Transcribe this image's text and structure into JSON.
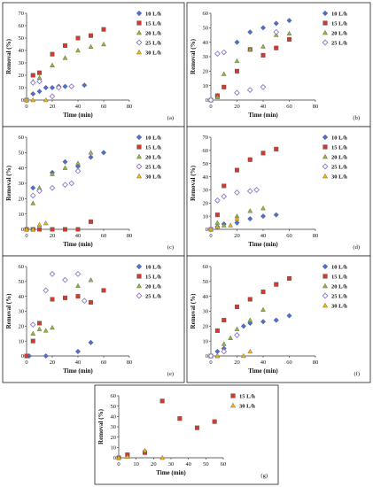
{
  "figure": {
    "colors": {
      "10 L/h": "#4a6fd6",
      "15 L/h": "#d23a2e",
      "20 L/h": "#8fb83a",
      "25 L/h": "#8e7cc3",
      "30 L/h": "#f2b705"
    },
    "markers": {
      "10 L/h": "diamond",
      "15 L/h": "square",
      "20 L/h": "triangle",
      "25 L/h": "diamond-open",
      "30 L/h": "triangle"
    }
  },
  "chart_data": [
    {
      "type": "scatter",
      "panel_label": "(a)",
      "xlabel": "Time (min)",
      "ylabel": "Removal (%)",
      "xlim": [
        0,
        80
      ],
      "ylim": [
        0,
        70
      ],
      "xticks": [
        0,
        20,
        40,
        60,
        80
      ],
      "yticks": [
        0,
        10,
        20,
        30,
        40,
        50,
        60,
        70
      ],
      "legend_position": "right",
      "series": [
        {
          "name": "10 L/h",
          "x": [
            0,
            5,
            10,
            15,
            20,
            25,
            30,
            45
          ],
          "y": [
            0,
            5,
            7,
            10,
            10,
            11,
            11,
            12
          ]
        },
        {
          "name": "15 L/h",
          "x": [
            0,
            5,
            10,
            20,
            30,
            40,
            50,
            60
          ],
          "y": [
            0,
            20,
            22,
            37,
            44,
            50,
            52,
            57
          ]
        },
        {
          "name": "20 L/h",
          "x": [
            0,
            5,
            10,
            20,
            30,
            40,
            50,
            60
          ],
          "y": [
            0,
            15,
            18,
            28,
            34,
            40,
            43,
            45
          ]
        },
        {
          "name": "25 L/h",
          "x": [
            0,
            5,
            10,
            20,
            25,
            35
          ],
          "y": [
            0,
            14,
            15,
            3,
            10,
            11
          ]
        },
        {
          "name": "30 L/h",
          "x": [
            0,
            5,
            15
          ],
          "y": [
            0,
            0,
            0
          ]
        }
      ]
    },
    {
      "type": "scatter",
      "panel_label": "(b)",
      "xlabel": "Time (min)",
      "ylabel": "Removal (%)",
      "xlim": [
        0,
        80
      ],
      "ylim": [
        0,
        60
      ],
      "xticks": [
        0,
        20,
        40,
        60,
        80
      ],
      "yticks": [
        0,
        10,
        20,
        30,
        40,
        50,
        60
      ],
      "legend_position": "right",
      "series": [
        {
          "name": "10 L/h",
          "x": [
            0,
            5,
            10,
            20,
            30,
            40,
            50,
            60
          ],
          "y": [
            0,
            3,
            33,
            40,
            47,
            50,
            53,
            55
          ]
        },
        {
          "name": "15 L/h",
          "x": [
            0,
            5,
            10,
            20,
            30,
            40,
            50,
            60
          ],
          "y": [
            0,
            3,
            9,
            20,
            35,
            31,
            36,
            42
          ]
        },
        {
          "name": "20 L/h",
          "x": [
            0,
            5,
            10,
            20,
            30,
            40,
            50,
            60
          ],
          "y": [
            0,
            2,
            18,
            27,
            35,
            37,
            45,
            46
          ]
        },
        {
          "name": "25 L/h",
          "x": [
            0,
            5,
            10,
            20,
            30,
            40,
            50
          ],
          "y": [
            0,
            32,
            33,
            5,
            7,
            9,
            47
          ]
        }
      ]
    },
    {
      "type": "scatter",
      "panel_label": "(c)",
      "xlabel": "Time (min)",
      "ylabel": "Removal (%)",
      "xlim": [
        0,
        80
      ],
      "ylim": [
        0,
        60
      ],
      "xticks": [
        0,
        20,
        40,
        60,
        80
      ],
      "yticks": [
        0,
        10,
        20,
        30,
        40,
        50,
        60
      ],
      "legend_position": "right",
      "series": [
        {
          "name": "10 L/h",
          "x": [
            5,
            10,
            20,
            30,
            40,
            50,
            60
          ],
          "y": [
            27,
            25,
            37,
            44,
            41,
            47,
            50
          ]
        },
        {
          "name": "15 L/h",
          "x": [
            0,
            5,
            10,
            20,
            30,
            40,
            50
          ],
          "y": [
            0,
            0,
            0,
            0,
            0,
            0,
            5
          ]
        },
        {
          "name": "20 L/h",
          "x": [
            5,
            10,
            20,
            30,
            40,
            50
          ],
          "y": [
            17,
            27,
            36,
            40,
            43,
            50
          ]
        },
        {
          "name": "25 L/h",
          "x": [
            5,
            10,
            20,
            30,
            35,
            40
          ],
          "y": [
            22,
            25,
            27,
            29,
            30,
            38
          ]
        },
        {
          "name": "30 L/h",
          "x": [
            0,
            5,
            10,
            15
          ],
          "y": [
            0,
            0,
            3,
            4
          ]
        }
      ]
    },
    {
      "type": "scatter",
      "panel_label": "(d)",
      "xlabel": "Time (min)",
      "ylabel": "Removal (%)",
      "xlim": [
        0,
        80
      ],
      "ylim": [
        0,
        70
      ],
      "xticks": [
        0,
        20,
        40,
        60,
        80
      ],
      "yticks": [
        0,
        10,
        20,
        30,
        40,
        50,
        60,
        70
      ],
      "legend_position": "right",
      "series": [
        {
          "name": "10 L/h",
          "x": [
            0,
            5,
            10,
            20,
            30,
            40,
            50
          ],
          "y": [
            0,
            2,
            4,
            5,
            8,
            10,
            11
          ]
        },
        {
          "name": "15 L/h",
          "x": [
            0,
            5,
            10,
            20,
            30,
            40,
            50
          ],
          "y": [
            0,
            11,
            33,
            45,
            53,
            58,
            61
          ]
        },
        {
          "name": "20 L/h",
          "x": [
            0,
            5,
            10,
            20,
            30,
            40
          ],
          "y": [
            0,
            5,
            3,
            10,
            14,
            16
          ]
        },
        {
          "name": "25 L/h",
          "x": [
            0,
            5,
            10,
            20,
            30,
            35
          ],
          "y": [
            0,
            22,
            25,
            28,
            29,
            30
          ]
        },
        {
          "name": "30 L/h",
          "x": [
            0,
            5,
            15,
            20
          ],
          "y": [
            0,
            2,
            3,
            8
          ]
        }
      ]
    },
    {
      "type": "scatter",
      "panel_label": "(e)",
      "xlabel": "Time (min)",
      "ylabel": "Removal (%)",
      "xlim": [
        0,
        80
      ],
      "ylim": [
        0,
        60
      ],
      "xticks": [
        0,
        20,
        40,
        60,
        80
      ],
      "yticks": [
        0,
        10,
        20,
        30,
        40,
        50,
        60
      ],
      "legend_position": "right",
      "series": [
        {
          "name": "10 L/h",
          "x": [
            0,
            2,
            15,
            40,
            50
          ],
          "y": [
            0,
            0,
            0,
            3,
            9
          ]
        },
        {
          "name": "15 L/h",
          "x": [
            0,
            5,
            10,
            20,
            30,
            40,
            50,
            60
          ],
          "y": [
            0,
            10,
            22,
            38,
            39,
            40,
            36,
            44
          ]
        },
        {
          "name": "20 L/h",
          "x": [
            5,
            10,
            15,
            20,
            40,
            50
          ],
          "y": [
            15,
            18,
            17,
            19,
            47,
            51
          ]
        },
        {
          "name": "25 L/h",
          "x": [
            5,
            15,
            20,
            30,
            40,
            45
          ],
          "y": [
            21,
            44,
            55,
            51,
            55,
            37
          ]
        }
      ]
    },
    {
      "type": "scatter",
      "panel_label": "(f)",
      "xlabel": "Time (min)",
      "ylabel": "Removal (%)",
      "xlim": [
        0,
        80
      ],
      "ylim": [
        0,
        60
      ],
      "xticks": [
        0,
        20,
        40,
        60,
        80
      ],
      "yticks": [
        0,
        10,
        20,
        30,
        40,
        50,
        60
      ],
      "legend_position": "right",
      "series": [
        {
          "name": "10 L/h",
          "x": [
            0,
            5,
            10,
            20,
            25,
            30,
            40,
            50,
            60
          ],
          "y": [
            0,
            3,
            5,
            14,
            20,
            22,
            23,
            24,
            27
          ]
        },
        {
          "name": "15 L/h",
          "x": [
            0,
            5,
            10,
            20,
            30,
            40,
            50,
            60
          ],
          "y": [
            0,
            17,
            24,
            33,
            38,
            43,
            48,
            52
          ]
        },
        {
          "name": "20 L/h",
          "x": [
            0,
            5,
            10,
            15,
            20,
            30,
            40
          ],
          "y": [
            0,
            0,
            8,
            12,
            18,
            24,
            31
          ]
        },
        {
          "name": "25 L/h",
          "x": [
            0,
            10,
            20
          ],
          "y": [
            0,
            3,
            14
          ]
        },
        {
          "name": "30 L/h",
          "x": [
            5,
            25,
            30
          ],
          "y": [
            0,
            0,
            3
          ]
        }
      ]
    },
    {
      "type": "scatter",
      "panel_label": "(g)",
      "xlabel": "Time (min)",
      "ylabel": "Removal (%)",
      "xlim": [
        0,
        60
      ],
      "ylim": [
        0,
        60
      ],
      "xticks": [
        0,
        10,
        20,
        30,
        40,
        50,
        60
      ],
      "yticks": [
        0,
        10,
        20,
        30,
        40,
        50,
        60
      ],
      "legend_position": "right",
      "series": [
        {
          "name": "15 L/h",
          "x": [
            0,
            5,
            15,
            25,
            35,
            45,
            55
          ],
          "y": [
            0,
            3,
            5,
            55,
            38,
            29,
            35
          ]
        },
        {
          "name": "30 L/h",
          "x": [
            0,
            5,
            15,
            25
          ],
          "y": [
            0,
            1,
            7,
            0
          ]
        }
      ]
    }
  ]
}
